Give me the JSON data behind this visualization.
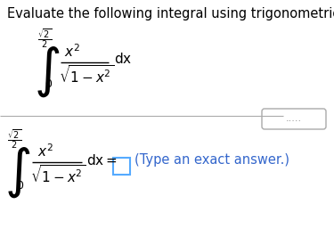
{
  "title": "Evaluate the following integral using trigonometric substitution.",
  "title_fontsize": 10.5,
  "background_color": "#ffffff",
  "text_color_black": "#000000",
  "text_color_blue": "#3366cc",
  "text_color_gray": "#888888",
  "answer_box_color": "#55aaff",
  "dots_text": ".....",
  "type_answer_text": "(Type an exact answer.)"
}
